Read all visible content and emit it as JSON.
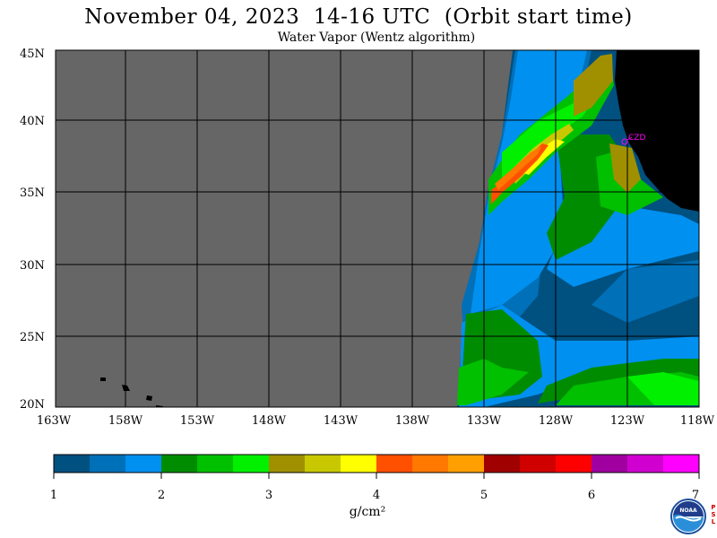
{
  "header": {
    "title": "November 04, 2023  14-16 UTC  (Orbit start time)",
    "subtitle": "Water Vapor (Wentz algorithm)"
  },
  "map": {
    "lat_labels": [
      "45N",
      "40N",
      "35N",
      "30N",
      "25N",
      "20N"
    ],
    "lon_labels": [
      "163W",
      "158W",
      "153W",
      "148W",
      "143W",
      "138W",
      "133W",
      "128W",
      "123W",
      "118W"
    ],
    "station_label": "CZD",
    "colors": {
      "no_data": "#666666",
      "land": "#000000",
      "grid": "#000000",
      "station": "#ff00ff"
    }
  },
  "colorbar": {
    "ticks": [
      "1",
      "2",
      "3",
      "4",
      "5",
      "6",
      "7"
    ],
    "unit": "g/cm²",
    "colors": [
      "#005080",
      "#0070b8",
      "#0090f0",
      "#008c00",
      "#00c000",
      "#00f000",
      "#a09000",
      "#c8c800",
      "#ffff00",
      "#ff5000",
      "#ff7800",
      "#ffa000",
      "#a00000",
      "#d00000",
      "#ff0000",
      "#a000a0",
      "#d000d0",
      "#ff00ff"
    ]
  },
  "footer": {
    "logo_text": "NOAA",
    "psl_text": "PSL"
  }
}
